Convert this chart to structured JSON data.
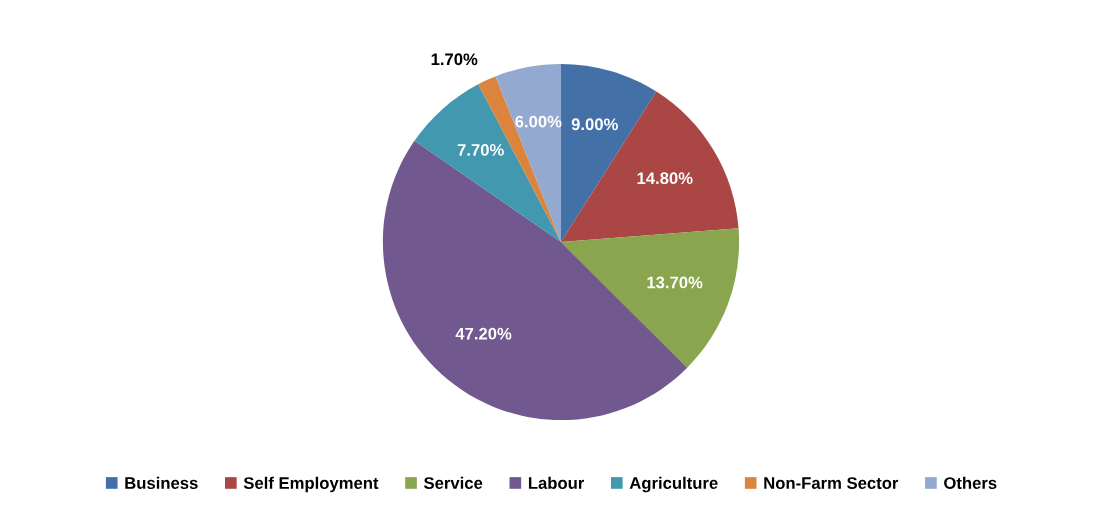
{
  "chart_data": {
    "type": "pie",
    "categories": [
      "Business",
      "Self Employment",
      "Service",
      "Labour",
      "Agriculture",
      "Non-Farm Sector",
      "Others"
    ],
    "values": [
      9.0,
      14.8,
      13.7,
      47.2,
      7.7,
      1.7,
      6.0
    ],
    "colors": [
      "#4470a8",
      "#aa4643",
      "#89a54e",
      "#71588f",
      "#4198af",
      "#db843d",
      "#93a9cf"
    ],
    "value_labels": [
      "9.00%",
      "14.80%",
      "13.70%",
      "47.20%",
      "7.70%",
      "1.70%",
      "6.00%"
    ],
    "legend": "bottom"
  }
}
